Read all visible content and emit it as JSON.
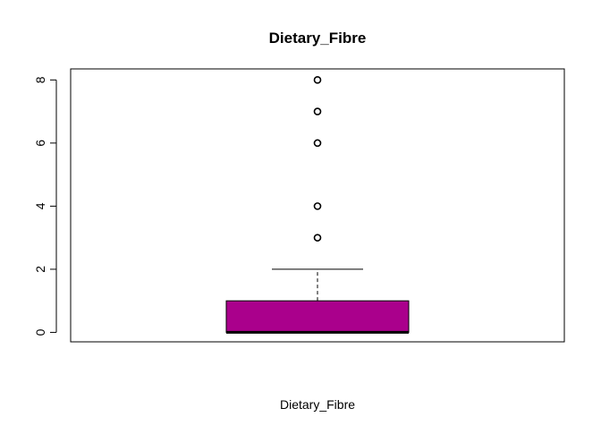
{
  "chart_data": {
    "type": "boxplot",
    "title": "Dietary_Fibre",
    "xlabel": "Dietary_Fibre",
    "ylabel": "",
    "ylim": [
      -0.3,
      8.35
    ],
    "y_ticks": [
      0,
      2,
      4,
      6,
      8
    ],
    "grid": false,
    "series": [
      {
        "min": 0,
        "q1": 0,
        "median": 0,
        "q3": 1,
        "whisker_low": 0,
        "whisker_high": 2,
        "outliers": [
          3,
          4,
          6,
          7,
          8
        ]
      }
    ],
    "colors": {
      "box_fill": "#AA008C",
      "stroke": "#000000"
    }
  }
}
